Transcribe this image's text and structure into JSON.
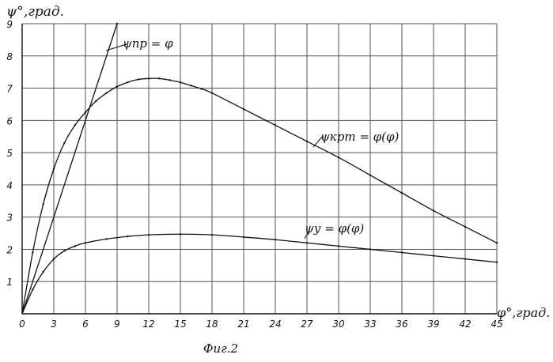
{
  "chart_data": {
    "type": "line",
    "y_axis_label": "ψ°,град.",
    "x_axis_label": "φ°,град.",
    "caption": "Фиг.2",
    "xlim": [
      0,
      45
    ],
    "ylim": [
      0,
      9
    ],
    "x_ticks": [
      0,
      3,
      6,
      9,
      12,
      15,
      18,
      21,
      24,
      27,
      30,
      33,
      36,
      39,
      42,
      45
    ],
    "y_ticks": [
      0,
      1,
      2,
      3,
      4,
      5,
      6,
      7,
      8,
      9
    ],
    "grid": true,
    "series": [
      {
        "name": "ψпр = φ",
        "x": [
          0,
          9
        ],
        "y": [
          0,
          9
        ]
      },
      {
        "name": "ψкрт = φ(φ)",
        "x": [
          0,
          1,
          2,
          3,
          4,
          5,
          6,
          7,
          8,
          9,
          10,
          11,
          12,
          13,
          14,
          15,
          16,
          17,
          18,
          21,
          24,
          27,
          30,
          33,
          36,
          39,
          42,
          45
        ],
        "y": [
          0,
          1.9,
          3.4,
          4.5,
          5.3,
          5.85,
          6.25,
          6.6,
          6.85,
          7.05,
          7.18,
          7.27,
          7.3,
          7.3,
          7.25,
          7.18,
          7.08,
          6.98,
          6.85,
          6.35,
          5.85,
          5.35,
          4.85,
          4.3,
          3.75,
          3.2,
          2.7,
          2.2
        ]
      },
      {
        "name": "ψу = φ(φ)",
        "x": [
          0,
          1,
          2,
          3,
          4,
          5,
          6,
          8,
          10,
          12,
          15,
          18,
          21,
          24,
          27,
          30,
          33,
          36,
          39,
          42,
          45
        ],
        "y": [
          0,
          0.75,
          1.3,
          1.7,
          1.95,
          2.1,
          2.2,
          2.32,
          2.4,
          2.45,
          2.47,
          2.45,
          2.38,
          2.3,
          2.2,
          2.1,
          2.0,
          1.9,
          1.8,
          1.7,
          1.6
        ]
      }
    ],
    "labels": {
      "line": "ψпр = φ",
      "curve_upper": "ψкрт = φ(φ)",
      "curve_lower": "ψу = φ(φ)"
    }
  }
}
